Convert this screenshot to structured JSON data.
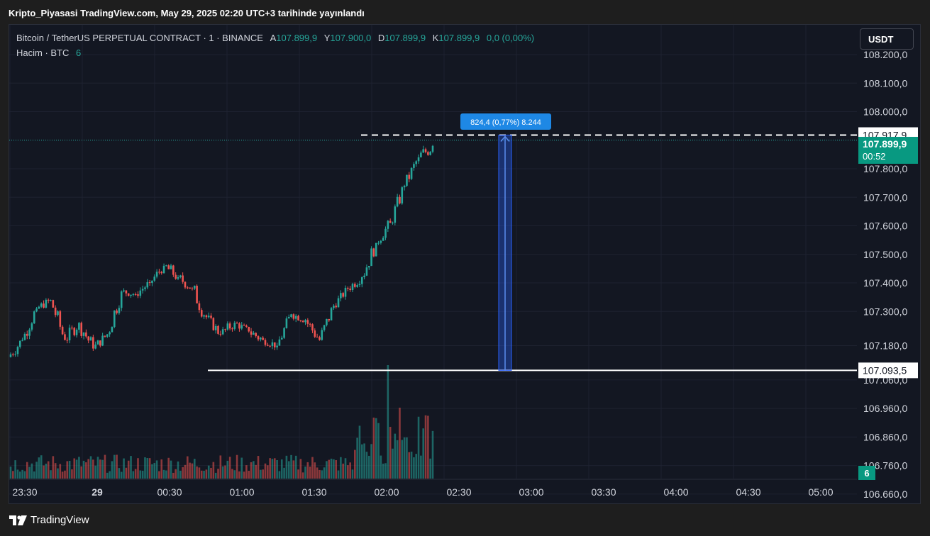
{
  "header": {
    "publish_title": "Kripto_Piyasasi TradingView.com, May 29, 2025 02:20 UTC+3 tarihinde yayınlandı"
  },
  "legend": {
    "symbol": "Bitcoin / TetherUS PERPETUAL CONTRACT · 1 · BINANCE",
    "open_label": "A",
    "open": "107.899,9",
    "high_label": "Y",
    "high": "107.900,0",
    "low_label": "D",
    "low": "107.899,9",
    "close_label": "K",
    "close": "107.899,9",
    "change": "0,0 (0,00%)",
    "volume_label": "Hacim · BTC",
    "volume": "6"
  },
  "toolbar": {
    "currency_label": "USDT"
  },
  "price_axis": {
    "ticks": [
      "108.200,0",
      "108.100,0",
      "108.000,0",
      "107.800,0",
      "107.700,0",
      "107.600,0",
      "107.500,0",
      "107.400,0",
      "107.300,0",
      "107.180,0",
      "107.060,0",
      "106.960,0",
      "106.860,0",
      "106.760,0",
      "106.660,0"
    ],
    "tick_values": [
      108200,
      108100,
      108000,
      107800,
      107700,
      107600,
      107500,
      107400,
      107300,
      107180,
      107060,
      106960,
      106860,
      106760,
      106660
    ],
    "upper_level_label": "107.917,9",
    "current_price_label": "107.899,9",
    "countdown": "00:52",
    "lower_level_label": "107.093,5",
    "volume_badge": "6"
  },
  "time_axis": {
    "ticks": [
      "23:30",
      "29",
      "00:30",
      "01:00",
      "01:30",
      "02:00",
      "02:30",
      "03:00",
      "03:30",
      "04:00",
      "04:30",
      "05:00"
    ]
  },
  "measure_tool": {
    "label": "824,4 (0,77%) 8.244",
    "from": 107093.5,
    "to": 107917.9
  },
  "colors": {
    "up": "#26a69a",
    "down": "#ef5350",
    "accent": "#2962ff",
    "measure": "#1e88e5"
  },
  "footer": {
    "brand": "TradingView"
  },
  "chart_data": {
    "type": "candlestick",
    "interval": "1 minute",
    "key_prices": [
      [
        107140,
        107240,
        107110,
        107200
      ],
      [
        107200,
        107330,
        107190,
        107310
      ],
      [
        107310,
        107370,
        107290,
        107340
      ],
      [
        107340,
        107360,
        107170,
        107200
      ],
      [
        107200,
        107290,
        107150,
        107260
      ],
      [
        107260,
        107320,
        107140,
        107170
      ],
      [
        107170,
        107250,
        107150,
        107220
      ],
      [
        107220,
        107390,
        107200,
        107370
      ],
      [
        107370,
        107400,
        107330,
        107360
      ],
      [
        107360,
        107420,
        107330,
        107400
      ],
      [
        107400,
        107480,
        107380,
        107460
      ],
      [
        107460,
        107530,
        107400,
        107420
      ],
      [
        107420,
        107470,
        107360,
        107380
      ],
      [
        107380,
        107450,
        107260,
        107280
      ],
      [
        107280,
        107300,
        107190,
        107220
      ],
      [
        107220,
        107290,
        107180,
        107260
      ],
      [
        107260,
        107280,
        107200,
        107230
      ],
      [
        107230,
        107260,
        107140,
        107200
      ],
      [
        107200,
        107230,
        107150,
        107180
      ],
      [
        107180,
        107310,
        107170,
        107290
      ],
      [
        107290,
        107310,
        107230,
        107270
      ],
      [
        107270,
        107300,
        107160,
        107200
      ],
      [
        107200,
        107340,
        107190,
        107320
      ],
      [
        107320,
        107400,
        107310,
        107380
      ],
      [
        107380,
        107440,
        107340,
        107420
      ],
      [
        107420,
        107560,
        107400,
        107540
      ],
      [
        107540,
        107640,
        107520,
        107610
      ],
      [
        107610,
        107760,
        107600,
        107740
      ],
      [
        107740,
        107860,
        107720,
        107840
      ],
      [
        107840,
        107910,
        107760,
        107880
      ]
    ]
  }
}
